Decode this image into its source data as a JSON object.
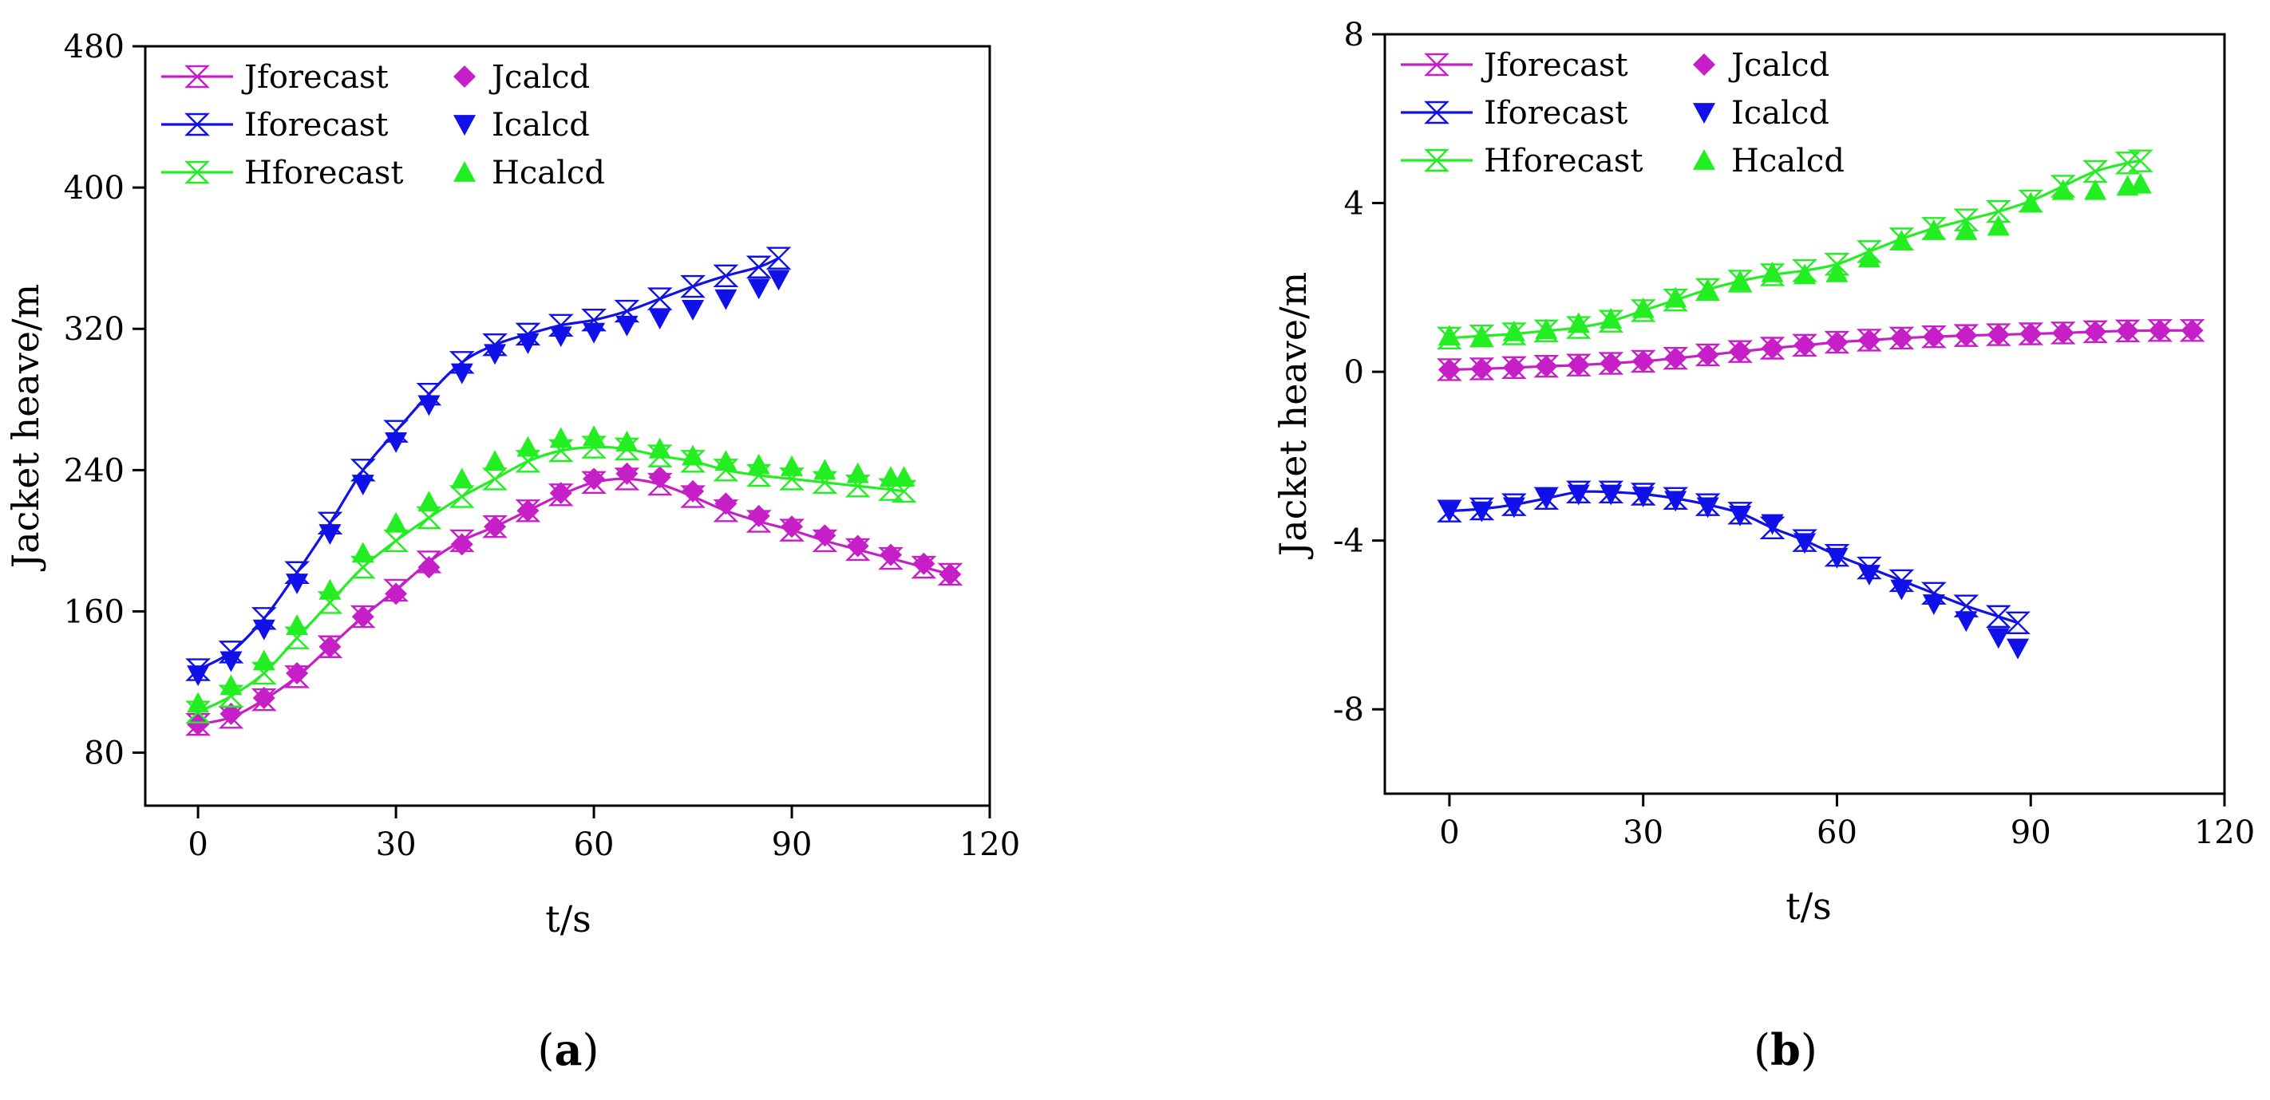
{
  "chart_data": [
    {
      "type": "line",
      "panel_label": "a",
      "title": "",
      "xlabel": "t/s",
      "ylabel": "Jacket heave/m",
      "xlim": [
        -8,
        120
      ],
      "ylim": [
        50,
        480
      ],
      "xticks": [
        0,
        30,
        60,
        90,
        120
      ],
      "yticks": [
        80,
        160,
        240,
        320,
        400,
        480
      ],
      "grid": false,
      "legend_position": "top-left",
      "series": [
        {
          "name": "Jforecast",
          "kind": "line",
          "color": "#c71fc7",
          "marker": "hourglass",
          "x": [
            0,
            5,
            10,
            15,
            20,
            25,
            30,
            35,
            40,
            45,
            50,
            55,
            60,
            65,
            70,
            75,
            80,
            85,
            90,
            95,
            100,
            105,
            110,
            114
          ],
          "y": [
            96,
            100,
            110,
            123,
            140,
            157,
            172,
            188,
            200,
            208,
            217,
            226,
            233,
            235,
            232,
            225,
            217,
            211,
            206,
            200,
            195,
            190,
            185,
            181
          ]
        },
        {
          "name": "Jcalcd",
          "kind": "scatter",
          "color": "#c71fc7",
          "marker": "diamond",
          "x": [
            0,
            5,
            10,
            15,
            20,
            25,
            30,
            35,
            40,
            45,
            50,
            55,
            60,
            65,
            70,
            75,
            80,
            85,
            90,
            95,
            100,
            105,
            110,
            114
          ],
          "y": [
            96,
            102,
            111,
            125,
            140,
            157,
            170,
            185,
            198,
            208,
            217,
            227,
            235,
            238,
            236,
            228,
            221,
            214,
            208,
            203,
            197,
            192,
            187,
            181
          ]
        },
        {
          "name": "Iforecast",
          "kind": "line",
          "color": "#1010e8",
          "marker": "hourglass",
          "x": [
            0,
            5,
            10,
            15,
            20,
            25,
            30,
            35,
            40,
            45,
            50,
            55,
            60,
            65,
            70,
            75,
            80,
            85,
            88
          ],
          "y": [
            127,
            137,
            156,
            182,
            210,
            240,
            262,
            283,
            301,
            311,
            317,
            322,
            325,
            330,
            337,
            344,
            350,
            355,
            360
          ]
        },
        {
          "name": "Icalcd",
          "kind": "scatter",
          "color": "#1010e8",
          "marker": "triangle-down",
          "x": [
            0,
            5,
            10,
            15,
            20,
            25,
            30,
            35,
            40,
            45,
            50,
            55,
            60,
            65,
            70,
            75,
            80,
            85,
            88
          ],
          "y": [
            124,
            132,
            150,
            176,
            204,
            232,
            256,
            277,
            295,
            306,
            312,
            316,
            318,
            322,
            326,
            331,
            337,
            343,
            348
          ]
        },
        {
          "name": "Hforecast",
          "kind": "line",
          "color": "#22ee22",
          "marker": "hourglass",
          "x": [
            0,
            5,
            10,
            15,
            20,
            25,
            30,
            35,
            40,
            45,
            50,
            55,
            60,
            65,
            70,
            75,
            80,
            85,
            90,
            95,
            100,
            105,
            107
          ],
          "y": [
            103,
            112,
            125,
            145,
            165,
            185,
            200,
            213,
            225,
            235,
            245,
            251,
            253,
            252,
            248,
            245,
            240,
            237,
            235,
            233,
            231,
            229,
            228
          ]
        },
        {
          "name": "Hcalcd",
          "kind": "scatter",
          "color": "#22ee22",
          "marker": "triangle-up",
          "x": [
            0,
            5,
            10,
            15,
            20,
            25,
            30,
            35,
            40,
            45,
            50,
            55,
            60,
            65,
            70,
            75,
            80,
            85,
            90,
            95,
            100,
            105,
            107
          ],
          "y": [
            108,
            118,
            132,
            152,
            172,
            193,
            210,
            222,
            235,
            245,
            253,
            258,
            259,
            256,
            252,
            248,
            245,
            243,
            242,
            240,
            238,
            236,
            236
          ]
        }
      ]
    },
    {
      "type": "line",
      "panel_label": "b",
      "title": "",
      "xlabel": "t/s",
      "ylabel": "Jacket heave/m",
      "xlim": [
        -10,
        120
      ],
      "ylim": [
        -10,
        8
      ],
      "xticks": [
        0,
        30,
        60,
        90,
        120
      ],
      "yticks": [
        -8,
        -4,
        0,
        4,
        8
      ],
      "grid": false,
      "legend_position": "top-left",
      "series": [
        {
          "name": "Jforecast",
          "kind": "line",
          "color": "#c71fc7",
          "marker": "hourglass",
          "x": [
            0,
            5,
            10,
            15,
            20,
            25,
            30,
            35,
            40,
            45,
            50,
            55,
            60,
            65,
            70,
            75,
            80,
            85,
            90,
            95,
            100,
            105,
            110,
            115
          ],
          "y": [
            0.05,
            0.07,
            0.1,
            0.13,
            0.16,
            0.2,
            0.25,
            0.32,
            0.4,
            0.48,
            0.56,
            0.63,
            0.7,
            0.75,
            0.8,
            0.83,
            0.86,
            0.88,
            0.9,
            0.92,
            0.95,
            0.97,
            0.98,
            0.98
          ]
        },
        {
          "name": "Jcalcd",
          "kind": "scatter",
          "color": "#c71fc7",
          "marker": "diamond",
          "x": [
            0,
            5,
            10,
            15,
            20,
            25,
            30,
            35,
            40,
            45,
            50,
            55,
            60,
            65,
            70,
            75,
            80,
            85,
            90,
            95,
            100,
            105,
            110,
            115
          ],
          "y": [
            0.05,
            0.07,
            0.1,
            0.13,
            0.16,
            0.2,
            0.25,
            0.32,
            0.4,
            0.48,
            0.56,
            0.63,
            0.7,
            0.75,
            0.8,
            0.83,
            0.86,
            0.88,
            0.9,
            0.92,
            0.95,
            0.97,
            0.98,
            0.98
          ]
        },
        {
          "name": "Iforecast",
          "kind": "line",
          "color": "#1010e8",
          "marker": "hourglass",
          "x": [
            0,
            5,
            10,
            15,
            20,
            25,
            30,
            35,
            40,
            45,
            50,
            55,
            60,
            65,
            70,
            75,
            80,
            85,
            88
          ],
          "y": [
            -3.3,
            -3.25,
            -3.15,
            -3.0,
            -2.85,
            -2.85,
            -2.9,
            -3.0,
            -3.15,
            -3.35,
            -3.7,
            -4.0,
            -4.35,
            -4.65,
            -4.95,
            -5.25,
            -5.55,
            -5.8,
            -5.95
          ]
        },
        {
          "name": "Icalcd",
          "kind": "scatter",
          "color": "#1010e8",
          "marker": "triangle-down",
          "x": [
            0,
            5,
            10,
            15,
            20,
            25,
            30,
            35,
            40,
            45,
            50,
            55,
            60,
            65,
            70,
            75,
            80,
            85,
            88
          ],
          "y": [
            -3.3,
            -3.3,
            -3.2,
            -3.0,
            -2.9,
            -2.9,
            -2.95,
            -3.05,
            -3.2,
            -3.4,
            -3.6,
            -4.05,
            -4.4,
            -4.8,
            -5.15,
            -5.5,
            -5.9,
            -6.3,
            -6.55
          ]
        },
        {
          "name": "Hforecast",
          "kind": "line",
          "color": "#22ee22",
          "marker": "hourglass",
          "x": [
            0,
            5,
            10,
            15,
            20,
            25,
            30,
            35,
            40,
            45,
            50,
            55,
            60,
            65,
            70,
            75,
            80,
            85,
            90,
            95,
            100,
            105,
            107
          ],
          "y": [
            0.8,
            0.85,
            0.9,
            0.97,
            1.05,
            1.2,
            1.45,
            1.7,
            1.95,
            2.15,
            2.3,
            2.4,
            2.55,
            2.85,
            3.15,
            3.4,
            3.6,
            3.8,
            4.05,
            4.4,
            4.75,
            4.95,
            5.0
          ]
        },
        {
          "name": "Hcalcd",
          "kind": "scatter",
          "color": "#22ee22",
          "marker": "triangle-up",
          "x": [
            0,
            5,
            10,
            15,
            20,
            25,
            30,
            35,
            40,
            45,
            50,
            55,
            60,
            65,
            70,
            75,
            80,
            85,
            90,
            95,
            100,
            105,
            107
          ],
          "y": [
            0.85,
            0.85,
            0.95,
            1.0,
            1.15,
            1.25,
            1.5,
            1.75,
            1.95,
            2.15,
            2.35,
            2.3,
            2.35,
            2.7,
            3.1,
            3.35,
            3.35,
            3.45,
            4.0,
            4.3,
            4.3,
            4.4,
            4.45
          ]
        }
      ]
    }
  ]
}
